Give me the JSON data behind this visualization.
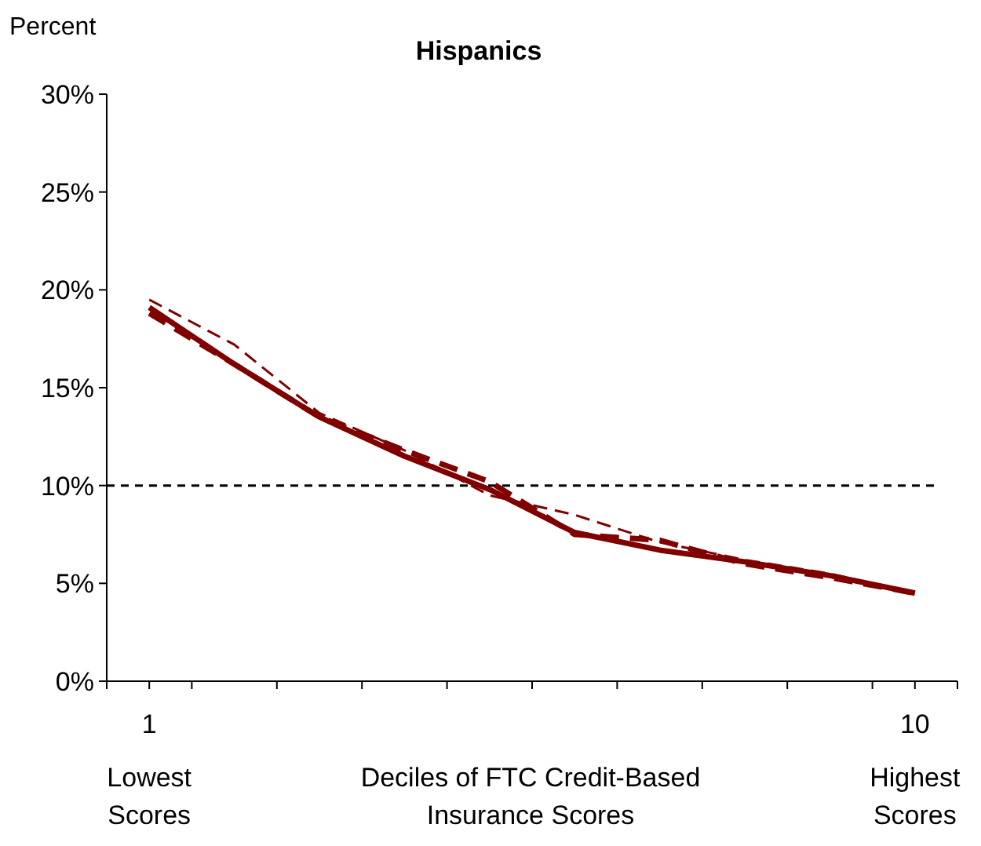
{
  "chart_data": {
    "type": "line",
    "title": "Hispanics",
    "ylabel": "Percent",
    "xlabel": "Deciles of FTC Credit-Based Insurance Scores",
    "x": [
      1,
      2,
      3,
      4,
      5,
      6,
      7,
      8,
      9,
      10
    ],
    "series": [
      {
        "color": "#800000",
        "line_style": "solid",
        "values": [
          19.1,
          16.2,
          13.5,
          11.5,
          9.8,
          7.6,
          6.7,
          6.1,
          5.4,
          4.5
        ]
      },
      {
        "color": "#800000",
        "line_style": "dashed",
        "values": [
          19.5,
          17.2,
          13.7,
          11.8,
          9.5,
          8.5,
          7.1,
          6.2,
          5.5,
          4.5
        ]
      },
      {
        "color": "#800000",
        "line_style": "dashed",
        "values": [
          18.8,
          16.2,
          13.5,
          11.8,
          10.2,
          7.5,
          7.2,
          6.0,
          5.3,
          4.5
        ]
      }
    ],
    "xlim": [
      0.5,
      10.5
    ],
    "xticks": [
      {
        "value": 0.5,
        "label": null
      },
      {
        "value": 1,
        "label": "1\nLowest\nScores"
      },
      {
        "value": 1.5,
        "label": null
      },
      {
        "value": 2.5,
        "label": null
      },
      {
        "value": 3.5,
        "label": null
      },
      {
        "value": 4.5,
        "label": null
      },
      {
        "value": 5.5,
        "label": null
      },
      {
        "value": 6.5,
        "label": null
      },
      {
        "value": 7.5,
        "label": null
      },
      {
        "value": 8.5,
        "label": null
      },
      {
        "value": 9.5,
        "label": null
      },
      {
        "value": 10,
        "label": "10\nHighest\nScores"
      },
      {
        "value": 10.5,
        "label": null
      }
    ],
    "ylim": [
      0,
      30
    ],
    "yticks": [
      {
        "value": 0,
        "label": "0%"
      },
      {
        "value": 5,
        "label": "5%"
      },
      {
        "value": 10,
        "label": "10%"
      },
      {
        "value": 15,
        "label": "15%"
      },
      {
        "value": 20,
        "label": "20%"
      },
      {
        "value": 25,
        "label": "25%"
      },
      {
        "value": 30,
        "label": "30%"
      }
    ],
    "ref_lines": [
      {
        "axis": "y",
        "value": 10,
        "color": "#000000",
        "line_style": "dashed"
      }
    ],
    "grid": false,
    "marker": "none"
  }
}
